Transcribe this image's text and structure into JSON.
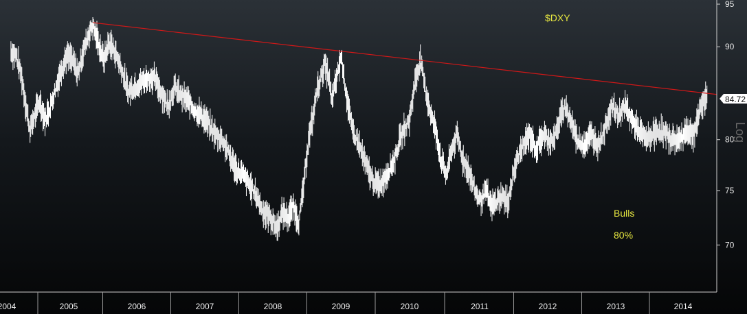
{
  "chart_data": {
    "type": "line",
    "ticker": "$DXY",
    "scale_label": "Log",
    "log_scale": true,
    "ylim": [
      66,
      95.5
    ],
    "y_ticks": [
      70,
      75,
      80,
      90,
      95
    ],
    "x_years": [
      "2004",
      "2005",
      "2006",
      "2007",
      "2008",
      "2009",
      "2010",
      "2011",
      "2012",
      "2013",
      "2014"
    ],
    "last_value": 84.72,
    "annotations": {
      "line1": "Bulls",
      "line2": "80%"
    },
    "colors": {
      "price": "#ffffff",
      "trendline": "#d01818",
      "annotation": "#e6e640",
      "axis": "#d0d0d0"
    },
    "trendline": {
      "x": [
        2005.4,
        2014.4
      ],
      "y": [
        92.8,
        84.72
      ]
    },
    "series": [
      {
        "x": [
          2004.2,
          2004.28,
          2004.36,
          2004.42,
          2004.48,
          2004.55,
          2004.62,
          2004.7,
          2004.78,
          2004.86,
          2004.94,
          2005.02,
          2005.1,
          2005.18,
          2005.26,
          2005.34,
          2005.4,
          2005.48,
          2005.56,
          2005.64,
          2005.72,
          2005.8,
          2005.88,
          2005.92,
          2006.0,
          2006.1,
          2006.2,
          2006.3,
          2006.4,
          2006.5,
          2006.6,
          2006.7,
          2006.8,
          2006.9,
          2007.0,
          2007.1,
          2007.2,
          2007.3,
          2007.4,
          2007.5,
          2007.6,
          2007.7,
          2007.8,
          2007.9,
          2008.0,
          2008.1,
          2008.18,
          2008.26,
          2008.34,
          2008.42,
          2008.5,
          2008.56,
          2008.62,
          2008.68,
          2008.74,
          2008.8,
          2008.86,
          2008.9,
          2008.96,
          2009.04,
          2009.12,
          2009.2,
          2009.3,
          2009.4,
          2009.5,
          2009.58,
          2009.66,
          2009.74,
          2009.82,
          2009.9,
          2009.96,
          2010.04,
          2010.12,
          2010.2,
          2010.28,
          2010.36,
          2010.44,
          2010.5,
          2010.58,
          2010.66,
          2010.74,
          2010.82,
          2010.9,
          2011.0,
          2011.08,
          2011.16,
          2011.24,
          2011.32,
          2011.4,
          2011.48,
          2011.56,
          2011.64,
          2011.72,
          2011.8,
          2011.9,
          2012.0,
          2012.08,
          2012.16,
          2012.24,
          2012.32,
          2012.4,
          2012.5,
          2012.6,
          2012.7,
          2012.8,
          2012.9,
          2013.0,
          2013.1,
          2013.2,
          2013.3,
          2013.4,
          2013.5,
          2013.6,
          2013.7,
          2013.8,
          2013.9,
          2014.0,
          2014.1,
          2014.2,
          2014.3,
          2014.36,
          2014.4
        ],
        "values": [
          89.5,
          89.0,
          86.5,
          83.5,
          81.0,
          82.5,
          84.0,
          82.0,
          83.5,
          85.5,
          87.5,
          89.0,
          88.5,
          87.0,
          89.5,
          91.5,
          92.5,
          90.5,
          88.5,
          90.5,
          89.5,
          88.0,
          86.0,
          85.0,
          85.5,
          86.0,
          86.5,
          86.5,
          85.0,
          83.5,
          85.5,
          84.5,
          84.0,
          83.0,
          82.5,
          81.5,
          80.5,
          80.0,
          78.5,
          77.0,
          76.5,
          75.5,
          74.5,
          73.0,
          72.5,
          71.5,
          73.0,
          72.5,
          73.5,
          72.0,
          76.0,
          80.0,
          82.0,
          85.0,
          86.5,
          88.0,
          86.5,
          84.0,
          86.0,
          89.0,
          84.5,
          81.0,
          79.5,
          77.5,
          76.0,
          75.5,
          76.0,
          77.0,
          78.0,
          80.0,
          81.0,
          82.0,
          86.0,
          88.5,
          85.0,
          82.5,
          80.5,
          78.0,
          76.5,
          79.0,
          80.5,
          78.0,
          77.0,
          75.0,
          74.0,
          75.0,
          73.5,
          74.0,
          74.5,
          73.8,
          76.5,
          78.5,
          79.5,
          80.5,
          79.0,
          80.5,
          80.0,
          80.0,
          82.0,
          83.5,
          82.0,
          80.0,
          79.5,
          80.5,
          79.5,
          81.0,
          83.5,
          82.5,
          83.5,
          82.0,
          81.0,
          80.0,
          80.5,
          81.0,
          80.5,
          80.0,
          80.0,
          81.0,
          80.5,
          83.0,
          84.2,
          84.72
        ]
      }
    ]
  }
}
